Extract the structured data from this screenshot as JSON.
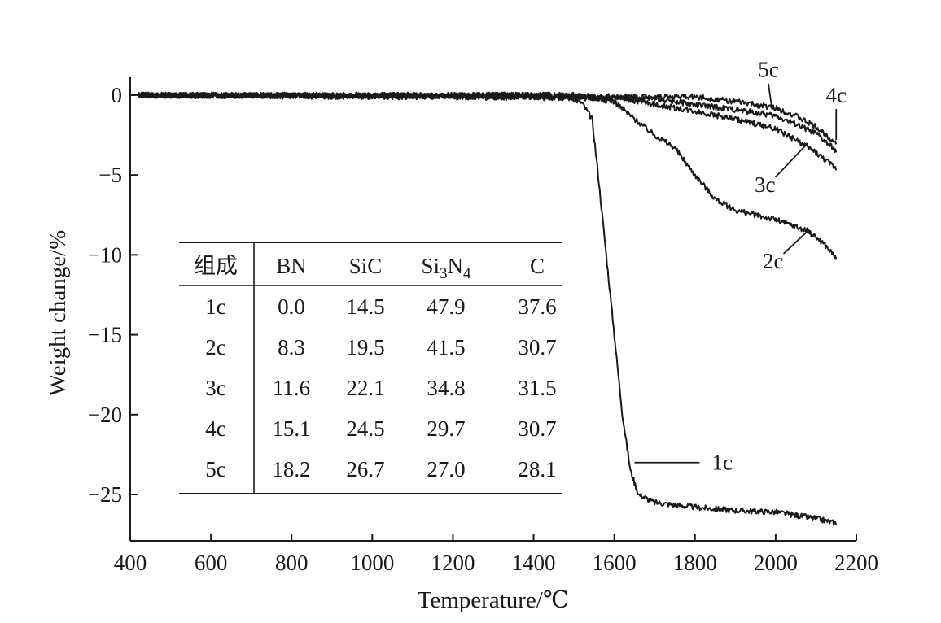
{
  "chart_data": {
    "type": "line",
    "title": "",
    "xlabel": "Temperature/℃",
    "ylabel": "Weight change/%",
    "xlim": [
      400,
      2200
    ],
    "ylim": [
      -28,
      0.5
    ],
    "xticks": [
      "400",
      "600",
      "800",
      "1000",
      "1200",
      "1400",
      "1600",
      "1800",
      "2000",
      "2200"
    ],
    "yticks": [
      "0",
      "−5",
      "−10",
      "−15",
      "−20",
      "−25"
    ],
    "grid": false,
    "series": [
      {
        "name": "1c",
        "x": [
          420,
          1400,
          1480,
          1520,
          1545,
          1560,
          1580,
          1600,
          1620,
          1640,
          1660,
          1700,
          1800,
          1900,
          2000,
          2100,
          2150
        ],
        "y": [
          0,
          0,
          0,
          -0.5,
          -1.5,
          -5,
          -10,
          -15,
          -20,
          -23.5,
          -25,
          -25.5,
          -25.8,
          -26.0,
          -26.1,
          -26.5,
          -26.8
        ]
      },
      {
        "name": "2c",
        "x": [
          420,
          1500,
          1600,
          1650,
          1700,
          1750,
          1800,
          1850,
          1900,
          2000,
          2080,
          2120,
          2150
        ],
        "y": [
          0,
          0,
          -0.4,
          -1.5,
          -2.5,
          -3.3,
          -5.0,
          -6.5,
          -7.2,
          -7.8,
          -8.5,
          -9.3,
          -10.2
        ]
      },
      {
        "name": "3c",
        "x": [
          420,
          1600,
          1700,
          1800,
          1900,
          2000,
          2050,
          2100,
          2150
        ],
        "y": [
          0,
          -0.1,
          -0.6,
          -1.0,
          -1.5,
          -2.1,
          -2.8,
          -3.6,
          -4.6
        ]
      },
      {
        "name": "4c",
        "x": [
          420,
          1700,
          1800,
          1900,
          2000,
          2050,
          2100,
          2150
        ],
        "y": [
          0,
          -0.2,
          -0.6,
          -0.9,
          -1.3,
          -1.8,
          -2.4,
          -3.5
        ]
      },
      {
        "name": "5c",
        "x": [
          420,
          1800,
          1900,
          2000,
          2050,
          2100,
          2150
        ],
        "y": [
          0,
          -0.1,
          -0.4,
          -0.8,
          -1.3,
          -2.0,
          -3.0
        ]
      }
    ],
    "labels": [
      {
        "text": "1c",
        "x": 1650,
        "y": -23
      },
      {
        "text": "2c",
        "x": 2080,
        "y": -8.5
      },
      {
        "text": "3c",
        "x": 2080,
        "y": -3.0
      },
      {
        "text": "4c",
        "x": 2150,
        "y": -2.8
      },
      {
        "text": "5c",
        "x": 1990,
        "y": -0.7
      }
    ],
    "table": {
      "headers": [
        "组成",
        "BN",
        "SiC",
        "Si3N4",
        "C"
      ],
      "rows": [
        [
          "1c",
          "0.0",
          "14.5",
          "47.9",
          "37.6"
        ],
        [
          "2c",
          "8.3",
          "19.5",
          "41.5",
          "30.7"
        ],
        [
          "3c",
          "11.6",
          "22.1",
          "34.8",
          "31.5"
        ],
        [
          "4c",
          "15.1",
          "24.5",
          "29.7",
          "30.7"
        ],
        [
          "5c",
          "18.2",
          "26.7",
          "27.0",
          "28.1"
        ]
      ]
    }
  }
}
